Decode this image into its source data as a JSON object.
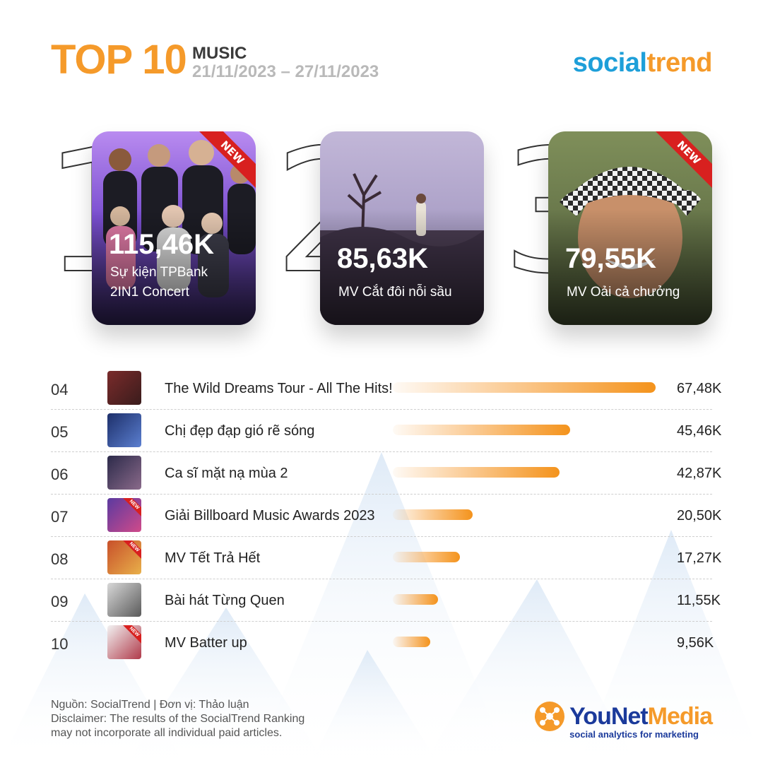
{
  "header": {
    "top": "TOP 10",
    "category": "MUSIC",
    "date_range": "21/11/2023 – 27/11/2023",
    "brand_part1": "social",
    "brand_part2": "trend"
  },
  "colors": {
    "accent_orange": "#f59a2a",
    "brand_blue": "#1e9fd9",
    "ribbon_red": "#d8201f",
    "younet_navy": "#1b3a9b"
  },
  "top3": [
    {
      "rank": "1",
      "value": "115,46K",
      "label_line1": "Sự kiện TPBank",
      "label_line2": "2IN1 Concert",
      "badge": "NEW"
    },
    {
      "rank": "2",
      "value": "85,63K",
      "label_line1": "MV Cắt đôi nỗi sầu",
      "label_line2": "",
      "badge": ""
    },
    {
      "rank": "3",
      "value": "79,55K",
      "label_line1": "MV Oải cả chưởng",
      "label_line2": "",
      "badge": "NEW"
    }
  ],
  "list": [
    {
      "rank": "04",
      "name": "The Wild Dreams Tour - All The Hits!",
      "value": "67,48K",
      "amount": 67.48,
      "badge": ""
    },
    {
      "rank": "05",
      "name": "Chị đẹp đạp gió rẽ sóng",
      "value": "45,46K",
      "amount": 45.46,
      "badge": ""
    },
    {
      "rank": "06",
      "name": "Ca sĩ mặt nạ mùa 2",
      "value": "42,87K",
      "amount": 42.87,
      "badge": ""
    },
    {
      "rank": "07",
      "name": "Giải Billboard Music Awards 2023",
      "value": "20,50K",
      "amount": 20.5,
      "badge": "NEW"
    },
    {
      "rank": "08",
      "name": "MV Tết Trả Hết",
      "value": "17,27K",
      "amount": 17.27,
      "badge": "NEW"
    },
    {
      "rank": "09",
      "name": "Bài hát Từng Quen",
      "value": "11,55K",
      "amount": 11.55,
      "badge": ""
    },
    {
      "rank": "10",
      "name": "MV Batter up",
      "value": "9,56K",
      "amount": 9.56,
      "badge": "NEW"
    }
  ],
  "footer": {
    "source": "Nguồn: SocialTrend |  Đơn vị: Thảo luận",
    "disclaimer_line1": "Disclaimer: The results of the SocialTrend Ranking",
    "disclaimer_line2": "may not incorporate all individual paid articles.",
    "younet_part1": "YouNet",
    "younet_part2": "Media",
    "tagline": "social analytics for marketing"
  }
}
